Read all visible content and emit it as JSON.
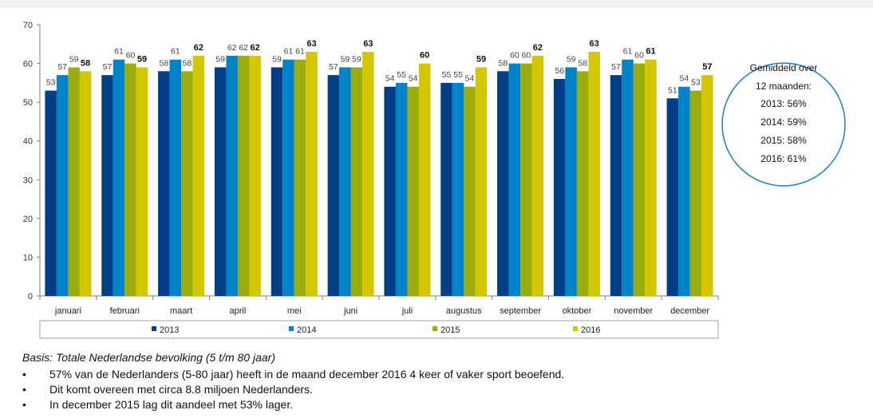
{
  "chart_data": {
    "type": "bar",
    "categories": [
      "januari",
      "februari",
      "maart",
      "april",
      "mei",
      "juni",
      "juli",
      "augustus",
      "september",
      "oktober",
      "november",
      "december"
    ],
    "series": [
      {
        "name": "2013",
        "color": "#003f87",
        "values": [
          53,
          57,
          58,
          59,
          59,
          57,
          54,
          55,
          58,
          56,
          57,
          51
        ]
      },
      {
        "name": "2014",
        "color": "#0082c8",
        "values": [
          57,
          61,
          61,
          62,
          61,
          59,
          55,
          55,
          60,
          59,
          61,
          54
        ]
      },
      {
        "name": "2015",
        "color": "#9bad0e",
        "values": [
          59,
          60,
          58,
          62,
          61,
          59,
          54,
          54,
          60,
          58,
          60,
          53
        ]
      },
      {
        "name": "2016",
        "color": "#d4c700",
        "values": [
          58,
          59,
          62,
          62,
          63,
          63,
          60,
          59,
          62,
          63,
          61,
          57
        ]
      }
    ],
    "ylim": [
      0,
      70
    ],
    "yticks": [
      0,
      10,
      20,
      30,
      40,
      50,
      60,
      70
    ],
    "legend_position": "bottom",
    "bold_series": "2016"
  },
  "callout": {
    "border_color": "#1a7fc4",
    "lines": [
      "Gemiddeld over",
      "12 maanden:",
      "2013: 56%",
      "2014: 59%",
      "2015: 58%",
      "2016: 61%"
    ]
  },
  "footer": {
    "basis": "Basis: Totale Nederlandse bevolking (5 t/m 80 jaar)",
    "bullet_symbol": "•",
    "bullets": [
      "57% van de Nederlanders (5-80 jaar) heeft in de maand december 2016 4 keer of vaker sport beoefend.",
      "Dit komt overeen met circa 8.8 miljoen Nederlanders.",
      "In december 2015 lag dit aandeel met 53% lager."
    ]
  }
}
